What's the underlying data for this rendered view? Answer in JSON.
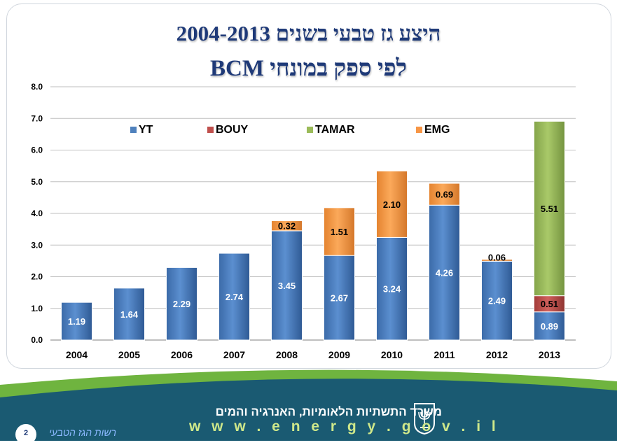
{
  "title": {
    "line1": "היצע גז טבעי בשנים 2004-2013",
    "line2": "לפי ספק במונחי BCM"
  },
  "footer": {
    "ministry": "משרד התשתיות הלאומיות, האנרגיה והמים",
    "website": "w w w . e n e r g y . g o v . i l",
    "page_number": "2",
    "authority": "רשות הגז הטבעי",
    "emblem_icon": "menorah-emblem-icon"
  },
  "colors": {
    "YT": "#4f81bd",
    "BOUY": "#c0504d",
    "TAMAR": "#9bbb59",
    "EMG": "#f79646",
    "footer_dark": "#1a5a72",
    "footer_green": "#6fb43f"
  },
  "chart_data": {
    "type": "bar",
    "stacked": true,
    "categories": [
      "2004",
      "2005",
      "2006",
      "2007",
      "2008",
      "2009",
      "2010",
      "2011",
      "2012",
      "2013"
    ],
    "series": [
      {
        "name": "YT",
        "values": [
          1.19,
          1.64,
          2.29,
          2.74,
          3.45,
          2.67,
          3.24,
          4.26,
          2.49,
          0.89
        ]
      },
      {
        "name": "BOUY",
        "values": [
          0,
          0,
          0,
          0,
          0,
          0,
          0,
          0,
          0,
          0.51
        ]
      },
      {
        "name": "TAMAR",
        "values": [
          0,
          0,
          0,
          0,
          0,
          0,
          0,
          0,
          0,
          5.51
        ]
      },
      {
        "name": "EMG",
        "values": [
          0,
          0,
          0,
          0,
          0.32,
          1.51,
          2.1,
          0.69,
          0.06,
          0
        ]
      }
    ],
    "y_ticks": [
      "0.0",
      "1.0",
      "2.0",
      "3.0",
      "4.0",
      "5.0",
      "6.0",
      "7.0",
      "8.0"
    ],
    "ylim": [
      0,
      8
    ],
    "grid": true,
    "legend": "top",
    "xlabel": "",
    "ylabel": ""
  }
}
